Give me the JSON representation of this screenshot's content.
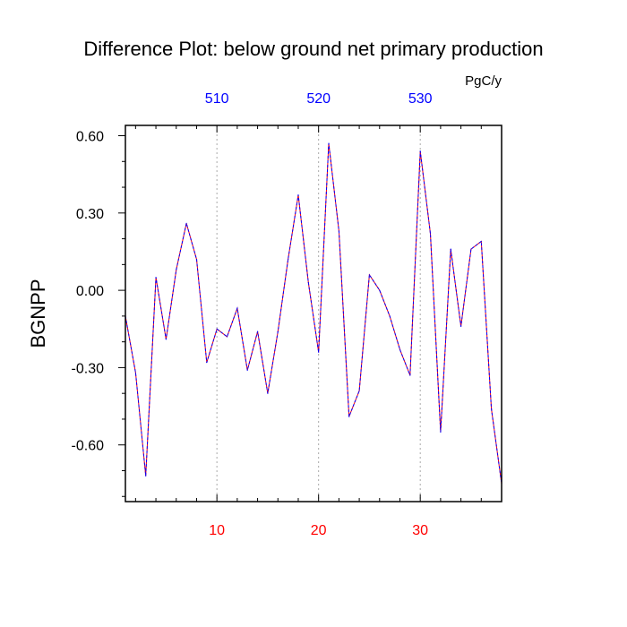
{
  "chart_data": {
    "type": "line",
    "title": "Difference Plot: below ground net primary production",
    "units": "PgC/y",
    "ylabel": "BGNPP",
    "xlim": [
      1,
      38
    ],
    "ylim": [
      -0.82,
      0.64
    ],
    "yticks": [
      -0.6,
      -0.3,
      0.0,
      0.3,
      0.6
    ],
    "ytick_labels": [
      "-0.60",
      "-0.30",
      "0.00",
      "0.30",
      "0.60"
    ],
    "bottom_xticks": [
      10,
      20,
      30
    ],
    "bottom_xtick_labels": [
      "10",
      "20",
      "30"
    ],
    "top_xticks": [
      10,
      20,
      30
    ],
    "top_xtick_labels": [
      "510",
      "520",
      "530"
    ],
    "grid": "vertical dotted at major x ticks",
    "colors": {
      "bottom_axis_labels": "#ff0000",
      "top_axis_labels": "#0000ff",
      "line_primary": "#ff0000",
      "line_overlay": "#0000ff"
    },
    "x": [
      1,
      2,
      3,
      4,
      5,
      6,
      7,
      8,
      9,
      10,
      11,
      12,
      13,
      14,
      15,
      16,
      17,
      18,
      19,
      20,
      21,
      22,
      23,
      24,
      25,
      26,
      27,
      28,
      29,
      30,
      31,
      32,
      33,
      34,
      35,
      36,
      37,
      38
    ],
    "series": [
      {
        "values": [
          -0.1,
          -0.32,
          -0.72,
          0.05,
          -0.19,
          0.08,
          0.26,
          0.12,
          -0.28,
          -0.15,
          -0.18,
          -0.07,
          -0.31,
          -0.16,
          -0.4,
          -0.16,
          0.12,
          0.37,
          0.03,
          -0.24,
          0.57,
          0.23,
          -0.49,
          -0.39,
          0.06,
          0.0,
          -0.1,
          -0.23,
          -0.33,
          0.54,
          0.22,
          -0.55,
          0.16,
          -0.14,
          0.16,
          0.19,
          -0.46,
          -0.75
        ]
      }
    ]
  }
}
